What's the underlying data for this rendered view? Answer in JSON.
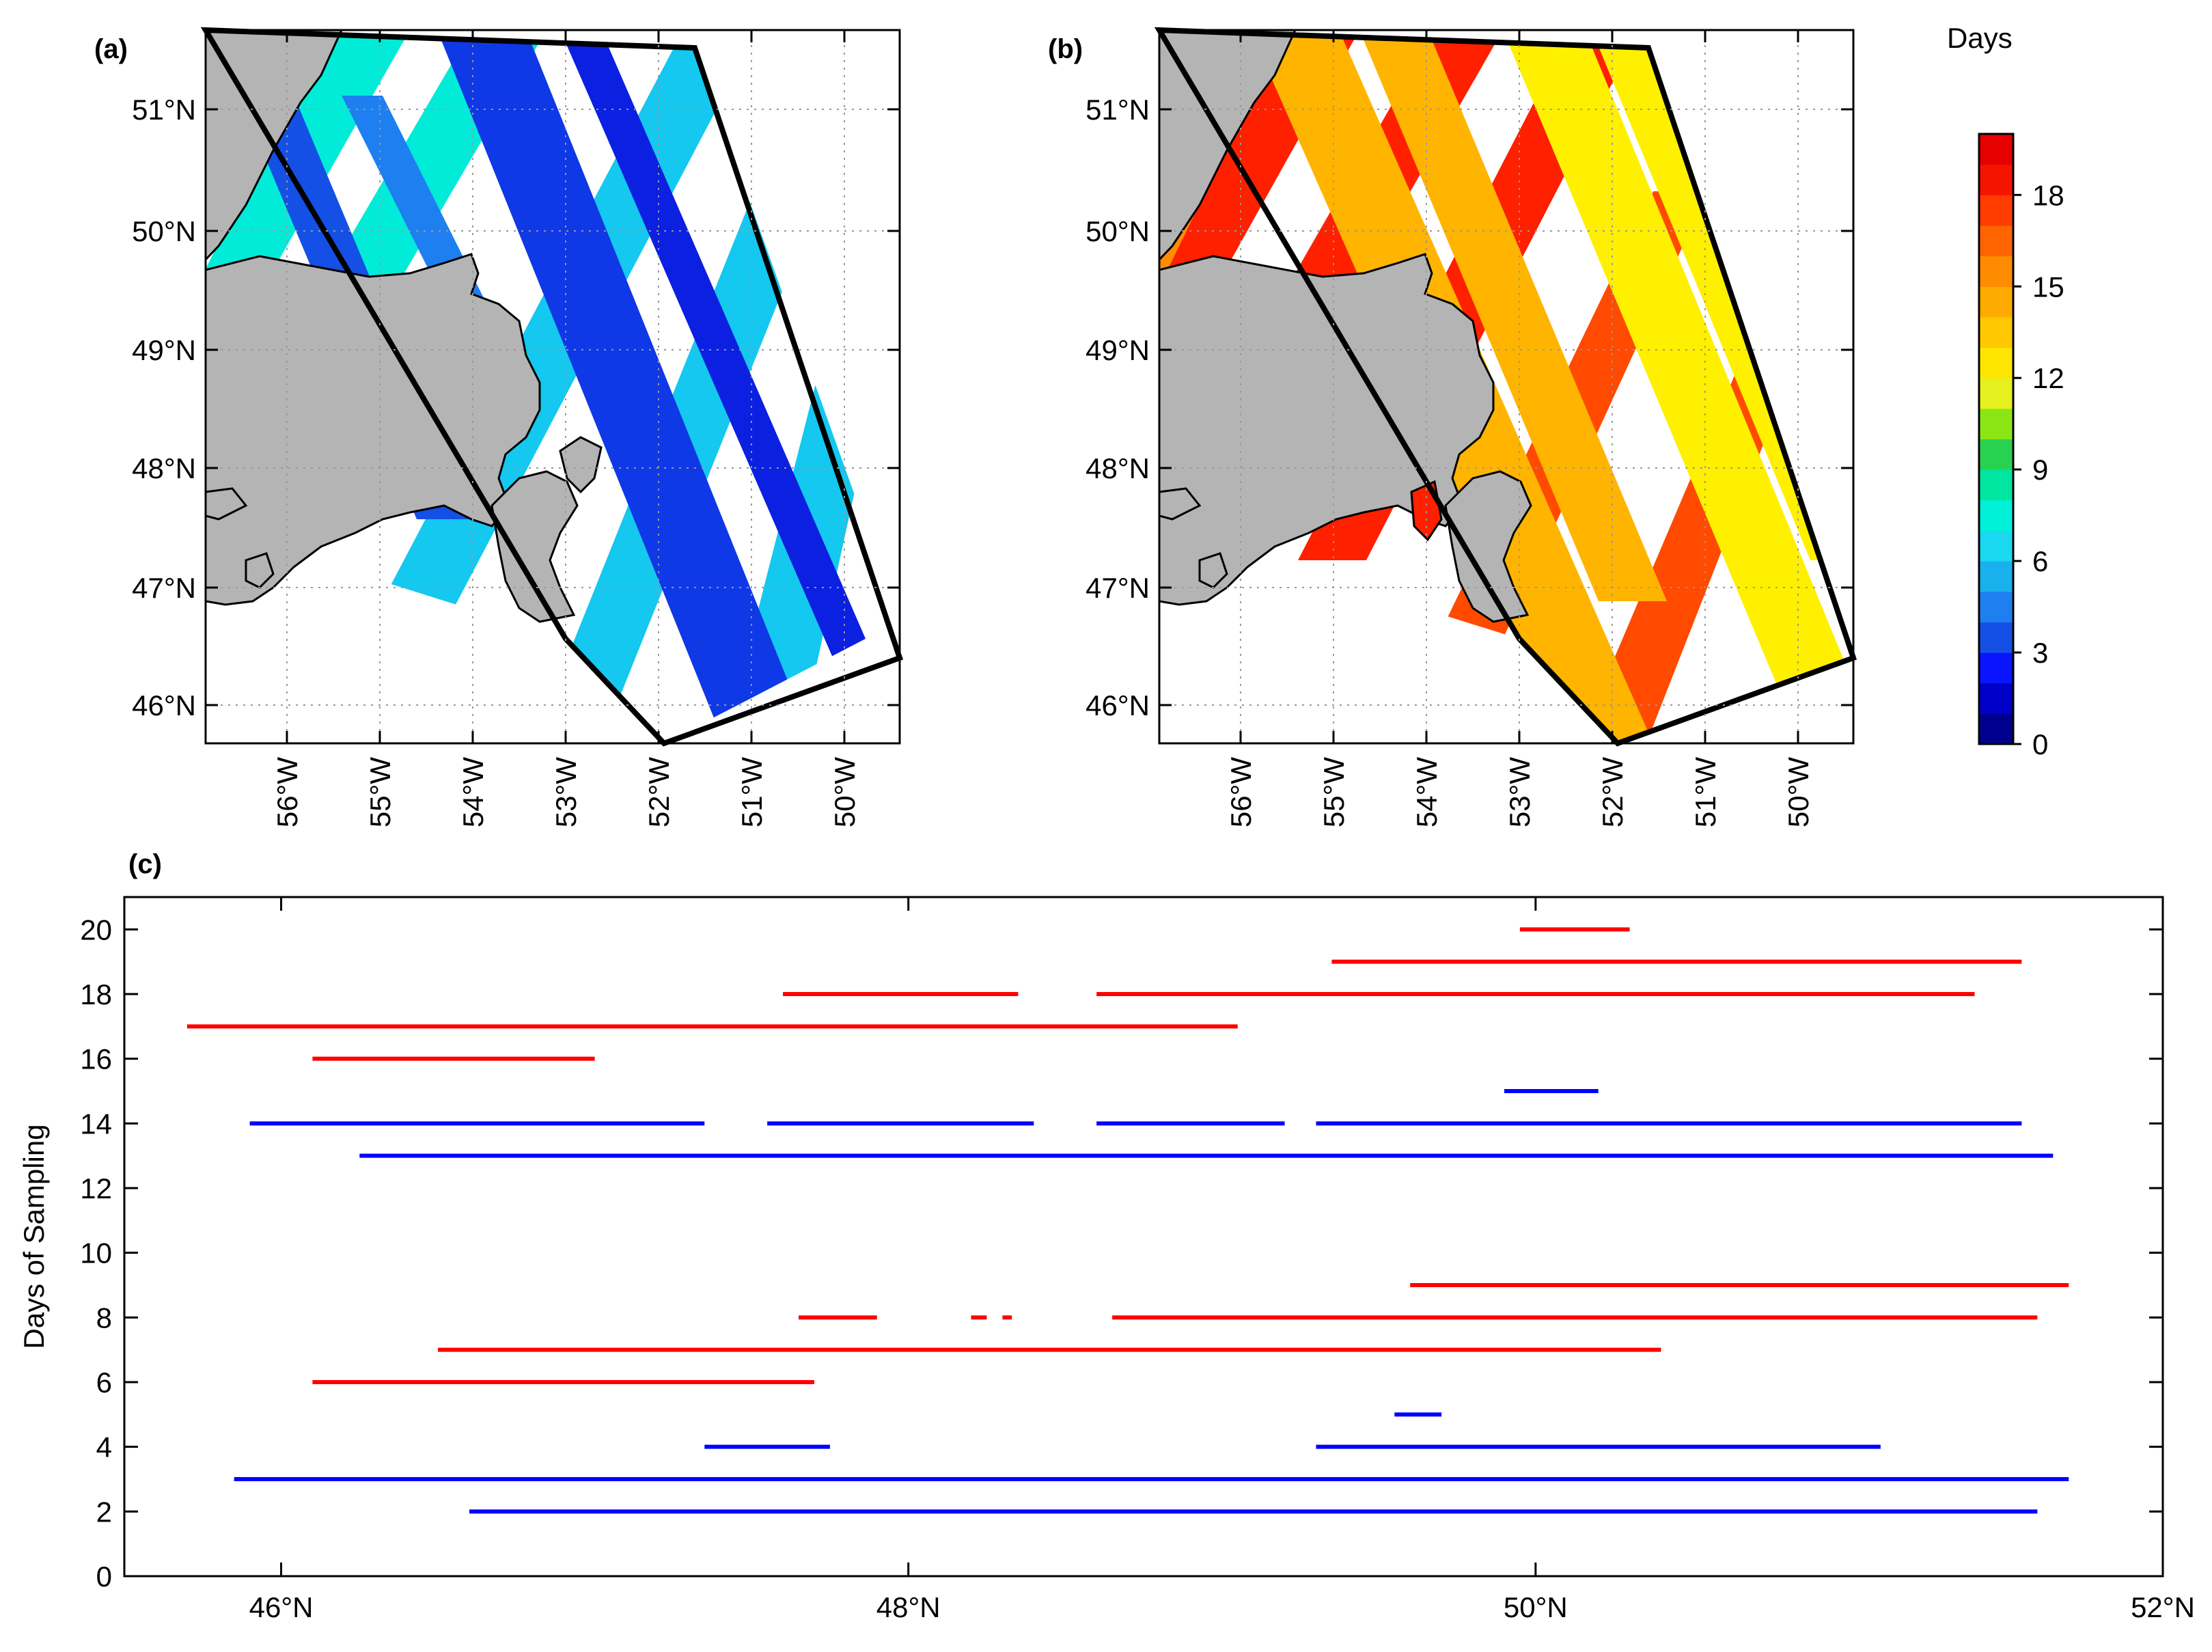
{
  "panels": {
    "a": "(a)",
    "b": "(b)",
    "c": "(c)"
  },
  "colorbar": {
    "title": "Days",
    "ticks": [
      "0",
      "3",
      "6",
      "9",
      "12",
      "15",
      "18"
    ],
    "tick_values": [
      0,
      3,
      6,
      9,
      12,
      15,
      18
    ],
    "range": [
      0,
      20
    ],
    "colors": [
      "#00008f",
      "#0000c8",
      "#0a14ff",
      "#1450e6",
      "#1e7ff0",
      "#19b0ee",
      "#19d8f0",
      "#00f0d8",
      "#00e6a0",
      "#28d250",
      "#8ce614",
      "#e6f01e",
      "#ffe600",
      "#ffc800",
      "#ffaa00",
      "#ff8c00",
      "#ff6400",
      "#ff3c00",
      "#f51400",
      "#e60000"
    ]
  },
  "maps": {
    "lat_ticks": [
      "46°N",
      "47°N",
      "48°N",
      "49°N",
      "50°N",
      "51°N"
    ],
    "lon_ticks": [
      "56°W",
      "55°W",
      "54°W",
      "53°W",
      "52°W",
      "51°W",
      "50°W"
    ],
    "panel_a_colors": {
      "descending_wide": "#0f38e6",
      "descending_narrow": "#0b20e0",
      "ascending_cyan": "#14c8f0",
      "ascending_teal": "#00ecd8",
      "ascending_green": "#00e6a8"
    },
    "panel_b_colors": {
      "orange": "#ffb400",
      "yellow": "#fff000",
      "red": "#ff2000",
      "redorange": "#ff4a00",
      "dark_orange": "#ff8c00"
    },
    "land_color": "#b4b4b4"
  },
  "chart_data": {
    "type": "line",
    "title": "(c)",
    "xlabel": "",
    "ylabel": "Days of Sampling",
    "xlim": [
      45.5,
      52
    ],
    "ylim": [
      0,
      21
    ],
    "x_ticks": [
      46,
      48,
      50,
      52
    ],
    "x_tick_labels": [
      "46°N",
      "48°N",
      "50°N",
      "52°N"
    ],
    "y_ticks": [
      0,
      2,
      4,
      6,
      8,
      10,
      12,
      14,
      16,
      18,
      20
    ],
    "y_tick_labels": [
      "0",
      "2",
      "4",
      "6",
      "8",
      "10",
      "12",
      "14",
      "16",
      "18",
      "20"
    ],
    "series": [
      {
        "name": "red segments",
        "color": "#ff0000",
        "segments": [
          {
            "y": 20,
            "x": [
              49.95,
              50.3
            ]
          },
          {
            "y": 19,
            "x": [
              49.35,
              51.55
            ]
          },
          {
            "y": 18,
            "x": [
              47.6,
              48.35
            ]
          },
          {
            "y": 18,
            "x": [
              48.6,
              51.4
            ]
          },
          {
            "y": 17,
            "x": [
              45.7,
              49.05
            ]
          },
          {
            "y": 16,
            "x": [
              46.1,
              47.0
            ]
          },
          {
            "y": 9,
            "x": [
              49.6,
              51.7
            ]
          },
          {
            "y": 8,
            "x": [
              47.65,
              47.9
            ]
          },
          {
            "y": 8,
            "x": [
              48.2,
              48.25
            ]
          },
          {
            "y": 8,
            "x": [
              48.3,
              48.33
            ]
          },
          {
            "y": 8,
            "x": [
              48.65,
              51.6
            ]
          },
          {
            "y": 7,
            "x": [
              46.5,
              50.4
            ]
          },
          {
            "y": 6,
            "x": [
              46.1,
              47.7
            ]
          }
        ]
      },
      {
        "name": "blue segments",
        "color": "#0000ff",
        "segments": [
          {
            "y": 15,
            "x": [
              49.9,
              50.2
            ]
          },
          {
            "y": 14,
            "x": [
              45.9,
              47.35
            ]
          },
          {
            "y": 14,
            "x": [
              47.55,
              48.4
            ]
          },
          {
            "y": 14,
            "x": [
              48.6,
              49.2
            ]
          },
          {
            "y": 14,
            "x": [
              49.3,
              51.55
            ]
          },
          {
            "y": 13,
            "x": [
              46.25,
              51.65
            ]
          },
          {
            "y": 5,
            "x": [
              49.55,
              49.7
            ]
          },
          {
            "y": 4,
            "x": [
              47.35,
              47.75
            ]
          },
          {
            "y": 4,
            "x": [
              49.3,
              51.1
            ]
          },
          {
            "y": 3,
            "x": [
              45.85,
              51.7
            ]
          },
          {
            "y": 2,
            "x": [
              46.6,
              51.6
            ]
          }
        ]
      }
    ]
  }
}
